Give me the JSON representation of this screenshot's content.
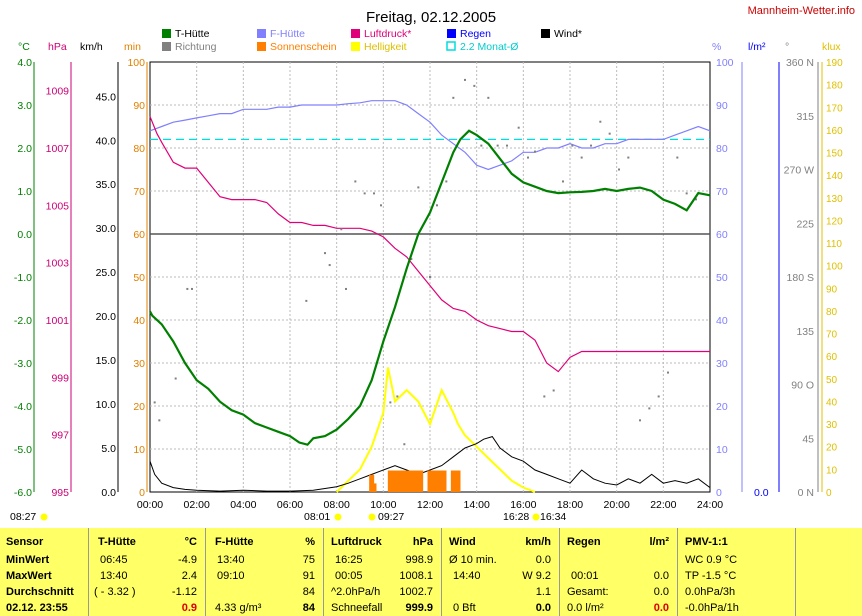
{
  "title": "Freitag, 02.12.2005",
  "site": "Mannheim-Wetter.info",
  "legend": [
    {
      "label": "T-Hütte",
      "color": "#008000",
      "text_color": "#000000"
    },
    {
      "label": "F-Hütte",
      "color": "#8080ff",
      "text_color": "#8080ff"
    },
    {
      "label": "Luftdruck*",
      "color": "#e0007a",
      "text_color": "#e0007a"
    },
    {
      "label": "Regen",
      "color": "#0000ff",
      "text_color": "#0000ff"
    },
    {
      "label": "Wind*",
      "color": "#000000",
      "text_color": "#000000"
    },
    {
      "label": "Richtung",
      "color": "#808080",
      "text_color": "#808080"
    },
    {
      "label": "Sonnenschein",
      "color": "#ff8000",
      "text_color": "#ff8000"
    },
    {
      "label": "Helligkeit",
      "color": "#ffff00",
      "text_color": "#e0c000"
    },
    {
      "label": "2.2 Monat-Ø",
      "color": "#00dddd",
      "text_color": "#00cccc"
    }
  ],
  "axes": {
    "celsius": {
      "unit": "°C",
      "color": "#008000",
      "ticks": [
        "4.0",
        "3.0",
        "2.0",
        "1.0",
        "0.0",
        "-1.0",
        "-2.0",
        "-3.0",
        "-4.0",
        "-5.0",
        "-6.0"
      ]
    },
    "hpa": {
      "unit": "hPa",
      "color": "#cc0077",
      "ticks": [
        "1009",
        "1007",
        "1005",
        "1003",
        "1001",
        "999",
        "997",
        "995"
      ]
    },
    "kmh": {
      "unit": "km/h",
      "color": "#000000",
      "ticks": [
        "45.0",
        "40.0",
        "35.0",
        "30.0",
        "25.0",
        "20.0",
        "15.0",
        "10.0",
        "5.0",
        "0.0"
      ]
    },
    "min": {
      "unit": "min",
      "color": "#e08000",
      "ticks": [
        "100",
        "90",
        "80",
        "70",
        "60",
        "50",
        "40",
        "30",
        "20",
        "10",
        "0"
      ]
    },
    "percent": {
      "unit": "%",
      "color": "#8080ff",
      "ticks": [
        "100",
        "90",
        "80",
        "70",
        "60",
        "50",
        "40",
        "30",
        "20",
        "10",
        "0"
      ]
    },
    "rain": {
      "unit": "l/m²",
      "color": "#0000ff",
      "ticks": [
        "0.0"
      ]
    },
    "direction": {
      "unit": "°",
      "color": "#808080",
      "ticks": [
        "360 N",
        "315",
        "270 W",
        "225",
        "180 S",
        "135",
        "90 O",
        "45",
        "0 N"
      ]
    },
    "klux": {
      "unit": "klux",
      "color": "#e0c000",
      "ticks": [
        "190",
        "180",
        "170",
        "160",
        "150",
        "140",
        "130",
        "120",
        "110",
        "100",
        "90",
        "80",
        "70",
        "60",
        "50",
        "40",
        "30",
        "20",
        "10",
        "0"
      ]
    },
    "time": {
      "ticks": [
        "00:00",
        "02:00",
        "04:00",
        "06:00",
        "08:00",
        "10:00",
        "12:00",
        "14:00",
        "16:00",
        "18:00",
        "20:00",
        "22:00",
        "24:00"
      ]
    }
  },
  "sun_events": {
    "sunrise_label": "08:27",
    "sunrise": "08:01",
    "sunrise2": "09:27",
    "sunset": "16:28",
    "sunset2": "16:34"
  },
  "chart_data": {
    "type": "line",
    "title": "Freitag, 02.12.2005",
    "x_unit": "hours",
    "xlim": [
      0,
      24
    ],
    "series": [
      {
        "name": "T-Hütte",
        "unit": "°C",
        "ylim": [
          -6,
          4
        ],
        "color": "#008000",
        "x": [
          0,
          0.1,
          0.5,
          1,
          1.5,
          2,
          2.5,
          3,
          3.5,
          4,
          4.5,
          5,
          5.5,
          6,
          6.4,
          6.75,
          7,
          7.5,
          8,
          8.5,
          9,
          9.5,
          10,
          10.5,
          11,
          11.5,
          12,
          12.5,
          13,
          13.3,
          13.67,
          14,
          14.5,
          15,
          15.5,
          16,
          16.5,
          17,
          17.5,
          18,
          18.5,
          19,
          19.5,
          20,
          20.5,
          21,
          21.5,
          22,
          22.5,
          23,
          23.5,
          24
        ],
        "y": [
          -1.8,
          -1.9,
          -2.1,
          -2.5,
          -3.0,
          -3.4,
          -3.6,
          -3.9,
          -4.1,
          -4.2,
          -4.4,
          -4.5,
          -4.6,
          -4.7,
          -4.85,
          -4.9,
          -4.75,
          -4.7,
          -4.55,
          -4.3,
          -4.0,
          -3.4,
          -2.5,
          -1.7,
          -0.8,
          0.0,
          0.5,
          1.2,
          1.9,
          2.2,
          2.4,
          2.3,
          2.1,
          1.75,
          1.4,
          1.2,
          1.1,
          1.0,
          0.95,
          0.97,
          0.98,
          1.0,
          1.05,
          1.0,
          1.05,
          1.08,
          1.0,
          0.8,
          0.7,
          0.55,
          0.95,
          0.9
        ]
      },
      {
        "name": "F-Hütte",
        "unit": "%",
        "ylim": [
          0,
          100
        ],
        "color": "#8080ff",
        "x": [
          0,
          0.5,
          1,
          1.5,
          2,
          2.5,
          3,
          3.5,
          4,
          4.5,
          5,
          5.5,
          6,
          6.5,
          7,
          7.5,
          8,
          8.5,
          9,
          9.5,
          10,
          10.5,
          11,
          11.5,
          12,
          12.5,
          13,
          13.5,
          13.67,
          14,
          14.5,
          15,
          15.5,
          16,
          16.5,
          17,
          17.5,
          18,
          18.5,
          19,
          19.5,
          20,
          20.5,
          21,
          21.5,
          22,
          22.5,
          23,
          23.5,
          24
        ],
        "y": [
          84,
          85,
          86,
          86.5,
          87,
          87.5,
          88,
          88,
          89,
          89,
          89,
          89.5,
          89.5,
          90,
          90,
          90,
          90,
          90.3,
          90.5,
          91,
          91,
          91,
          90,
          88,
          86,
          83,
          81,
          79,
          78,
          76,
          75,
          76,
          77,
          79,
          79,
          80,
          80,
          81,
          80,
          80,
          81,
          81,
          82,
          82,
          82,
          82,
          83,
          84,
          85,
          84
        ]
      },
      {
        "name": "Luftdruck*",
        "unit": "hPa",
        "ylim": [
          995,
          1010
        ],
        "color": "#e0007a",
        "x": [
          0,
          0.3,
          0.5,
          1,
          1.5,
          2,
          2.5,
          3,
          3.5,
          4,
          4.5,
          5,
          5.5,
          6,
          6.5,
          7,
          7.5,
          8,
          8.5,
          9,
          9.5,
          10,
          10.5,
          11,
          11.5,
          12,
          12.5,
          13,
          13.5,
          14,
          14.5,
          15,
          15.5,
          16,
          16.5,
          17,
          17.5,
          18,
          18.5,
          19,
          19.5,
          20,
          20.5,
          21,
          21.5,
          22,
          22.5,
          23,
          23.5,
          24
        ],
        "y": [
          1008.1,
          1007.5,
          1007.2,
          1006.5,
          1006.3,
          1006.3,
          1005.8,
          1005.3,
          1005.2,
          1005.2,
          1005.2,
          1005.1,
          1004.7,
          1004.4,
          1004.4,
          1004.3,
          1004.3,
          1004.2,
          1004.2,
          1004.2,
          1004.1,
          1003.9,
          1003.5,
          1003.2,
          1002.7,
          1002.2,
          1001.7,
          1001.4,
          1001.3,
          1001.0,
          1000.8,
          1000.7,
          1000.6,
          1000.6,
          1000.3,
          999.5,
          999.2,
          999.7,
          999.9,
          999.9,
          999.9,
          999.9,
          999.9,
          999.9,
          999.9,
          999.9,
          999.9,
          999.9,
          999.9,
          999.9
        ]
      },
      {
        "name": "Wind*",
        "unit": "km/h",
        "ylim": [
          0,
          48.9
        ],
        "color": "#000000",
        "x": [
          0,
          0.2,
          0.5,
          1,
          1.5,
          2,
          3,
          4,
          5,
          6,
          7,
          8,
          8.5,
          9,
          9.5,
          10,
          10.5,
          11,
          11.5,
          12,
          12.5,
          13,
          13.5,
          14,
          14.3,
          14.67,
          15,
          15.5,
          16,
          16.5,
          17,
          17.5,
          18,
          18.5,
          19,
          19.5,
          20,
          20.5,
          21,
          21.5,
          22,
          22.5,
          23,
          23.5,
          24
        ],
        "y": [
          3.5,
          2.0,
          1.0,
          0.5,
          0.3,
          0.2,
          0.1,
          0.2,
          0.1,
          0.1,
          0.2,
          0.6,
          1.0,
          1.5,
          2.0,
          2.5,
          3.0,
          2.5,
          2.0,
          2.5,
          3.0,
          4.0,
          5.0,
          5.5,
          6.0,
          6.3,
          5.0,
          4.0,
          3.5,
          2.5,
          2.0,
          1.5,
          1.0,
          2.5,
          1.5,
          1.0,
          0.8,
          1.5,
          1.0,
          2.0,
          1.0,
          1.3,
          1.0,
          1.5,
          0.5
        ]
      },
      {
        "name": "Helligkeit",
        "unit": "klux",
        "ylim": [
          0,
          190
        ],
        "color": "#ffff00",
        "x": [
          8,
          8.5,
          9,
          9.5,
          10,
          10.2,
          10.5,
          11,
          11.5,
          12,
          12.5,
          13,
          13.2,
          13.5,
          14,
          14.5,
          15,
          15.5,
          16,
          16.5
        ],
        "y": [
          0,
          5,
          10,
          20,
          35,
          55,
          40,
          45,
          40,
          30,
          45,
          35,
          30,
          25,
          20,
          15,
          10,
          5,
          2,
          0
        ]
      },
      {
        "name": "2.2 Monat-Ø",
        "unit": "%",
        "ylim": [
          0,
          100
        ],
        "color": "#00dddd",
        "x": [
          0,
          24
        ],
        "y": [
          82,
          82
        ]
      }
    ],
    "sunshine": {
      "name": "Sonnenschein",
      "unit": "min",
      "color": "#ff8000",
      "x": [
        9.5,
        9.6,
        10.3,
        10.4,
        10.6,
        10.8,
        11.0,
        11.2,
        11.4,
        11.6,
        12.0,
        12.2,
        12.4,
        12.6,
        13.0,
        13.2
      ],
      "values": [
        4,
        2,
        5,
        5,
        5,
        5,
        5,
        5,
        5,
        5,
        5,
        5,
        5,
        5,
        5,
        5
      ]
    },
    "direction": {
      "name": "Richtung",
      "unit": "°",
      "color": "#808080",
      "x": [
        0.2,
        0.4,
        1.1,
        1.6,
        1.8,
        6.7,
        7.5,
        7.7,
        8.2,
        8.4,
        8.8,
        9.2,
        9.6,
        9.9,
        10.3,
        10.6,
        10.9,
        11.2,
        11.5,
        12.0,
        12.3,
        12.7,
        13.0,
        13.5,
        13.9,
        14.2,
        14.5,
        14.9,
        15.3,
        15.8,
        16.2,
        16.5,
        16.9,
        17.3,
        17.7,
        18.1,
        18.5,
        18.9,
        19.3,
        19.7,
        20.1,
        20.5,
        21.0,
        21.4,
        21.8,
        22.2,
        22.6,
        23.0,
        23.4
      ],
      "y": [
        75,
        60,
        95,
        170,
        170,
        160,
        200,
        190,
        220,
        170,
        260,
        250,
        250,
        240,
        75,
        80,
        40,
        195,
        255,
        180,
        240,
        260,
        330,
        345,
        340,
        290,
        330,
        290,
        290,
        305,
        280,
        285,
        80,
        85,
        260,
        290,
        280,
        290,
        310,
        300,
        270,
        280,
        60,
        70,
        80,
        100,
        280,
        250,
        245
      ]
    },
    "rain": {
      "name": "Regen",
      "unit": "l/m²",
      "values": []
    }
  },
  "table": {
    "columns": {
      "sensor": {
        "header": "Sensor",
        "rows": [
          "MinWert",
          "MaxWert",
          "Durchschnitt",
          "02.12.  23:55"
        ]
      },
      "t_huette": {
        "header": "T-Hütte",
        "unit": "°C",
        "time": [
          "06:45",
          "13:40",
          "( - 3.32 )",
          ""
        ],
        "value": [
          "-4.9",
          "2.4",
          "-1.12",
          "0.9"
        ]
      },
      "f_huette": {
        "header": "F-Hütte",
        "unit": "%",
        "time": [
          "13:40",
          "09:10",
          "",
          "4.33 g/m³"
        ],
        "value": [
          "75",
          "91",
          "84",
          "84"
        ]
      },
      "luftdruck": {
        "header": "Luftdruck",
        "unit": "hPa",
        "time": [
          "16:25",
          "00:05",
          "^2.0hPa/h",
          "Schneefall"
        ],
        "value": [
          "998.9",
          "1008.1",
          "1002.7",
          "999.9"
        ]
      },
      "wind": {
        "header": "Wind",
        "unit": "km/h",
        "time": [
          "Ø 10 min.",
          "14:40",
          "",
          "0 Bft"
        ],
        "value": [
          "0.0",
          "W 9.2",
          "1.1",
          "0.0"
        ]
      },
      "regen": {
        "header": "Regen",
        "unit": "l/m²",
        "time": [
          "",
          "00:01",
          "Gesamt:",
          "0.0 l/m²"
        ],
        "value": [
          "",
          "0.0",
          "0.0",
          "0.0"
        ]
      },
      "pmv": {
        "header": "PMV-1:1",
        "rows": [
          "WC 0.9 °C",
          "TP -1.5 °C",
          "0.0hPa/3h",
          "-0.0hPa/1h"
        ]
      }
    }
  }
}
